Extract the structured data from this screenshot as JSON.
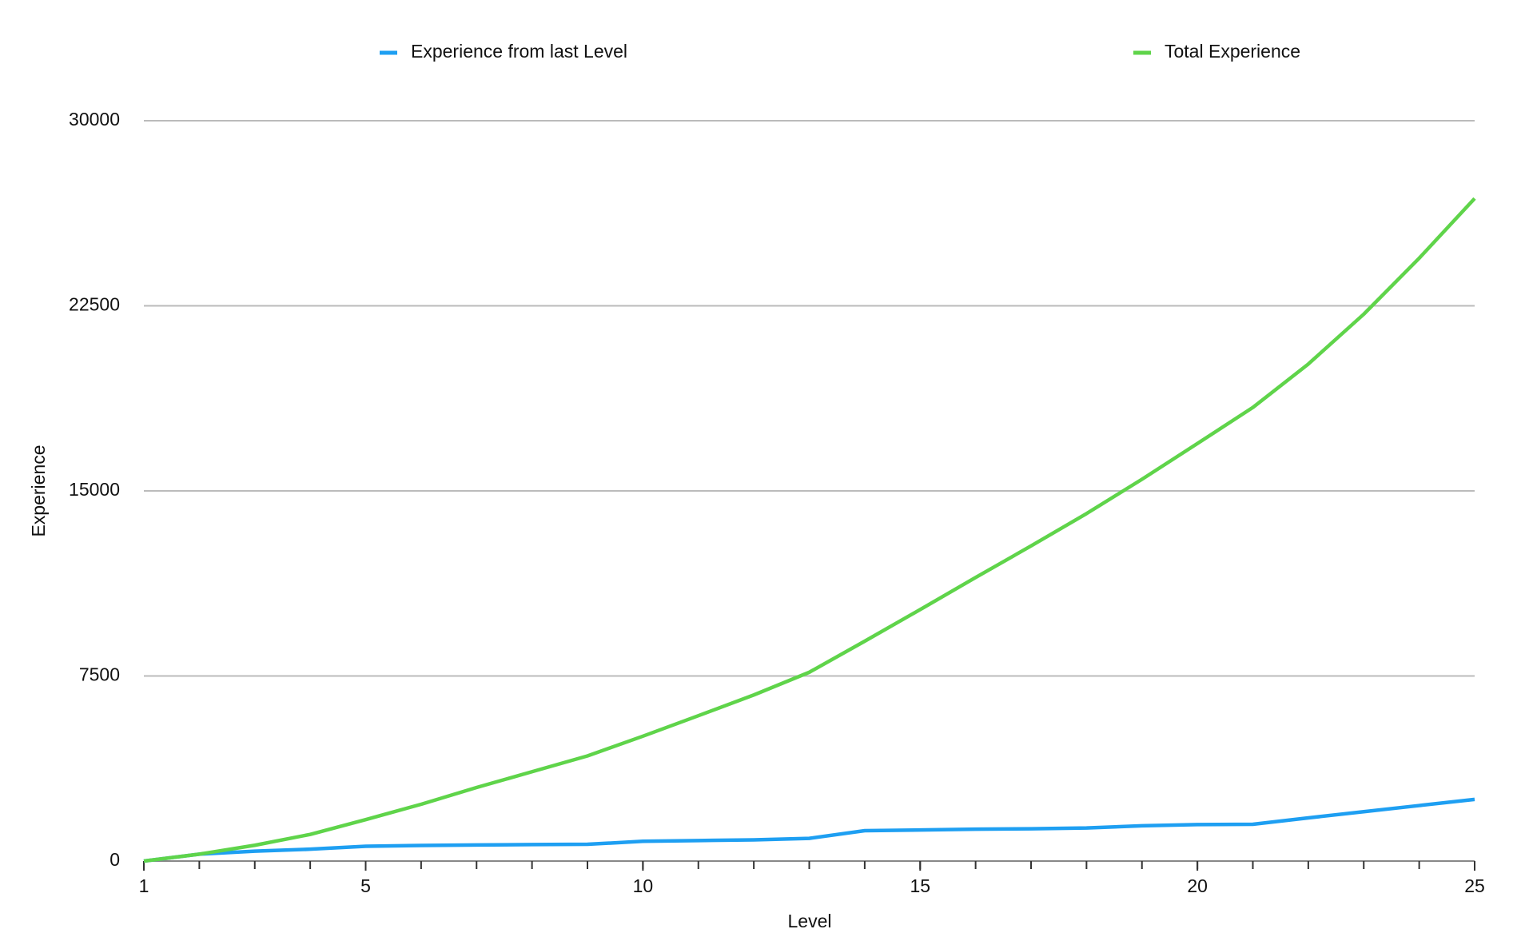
{
  "chart_data": {
    "type": "line",
    "x": [
      1,
      2,
      3,
      4,
      5,
      6,
      7,
      8,
      9,
      10,
      11,
      12,
      13,
      14,
      15,
      16,
      17,
      18,
      19,
      20,
      21,
      22,
      23,
      24,
      25
    ],
    "series": [
      {
        "name": "Experience from last Level",
        "color": "#1e9ff2",
        "values": [
          0,
          280,
          400,
          480,
          600,
          630,
          650,
          670,
          680,
          800,
          830,
          860,
          920,
          1230,
          1260,
          1290,
          1310,
          1340,
          1430,
          1480,
          1490,
          1750,
          2000,
          2250,
          2500
        ]
      },
      {
        "name": "Total Experience",
        "color": "#5fd44a",
        "values": [
          0,
          280,
          640,
          1080,
          1680,
          2300,
          2980,
          3620,
          4260,
          5060,
          5890,
          6730,
          7650,
          8910,
          10190,
          11490,
          12770,
          14080,
          15470,
          16920,
          18380,
          20140,
          22160,
          24430,
          26850
        ]
      }
    ],
    "xlabel": "Level",
    "ylabel": "Experience",
    "xlim": [
      1,
      25
    ],
    "xticks": [
      1,
      5,
      10,
      15,
      20,
      25
    ],
    "ylim": [
      0,
      30000
    ],
    "yticks": [
      0,
      7500,
      15000,
      22500,
      30000
    ],
    "grid": true,
    "legend": "top"
  }
}
